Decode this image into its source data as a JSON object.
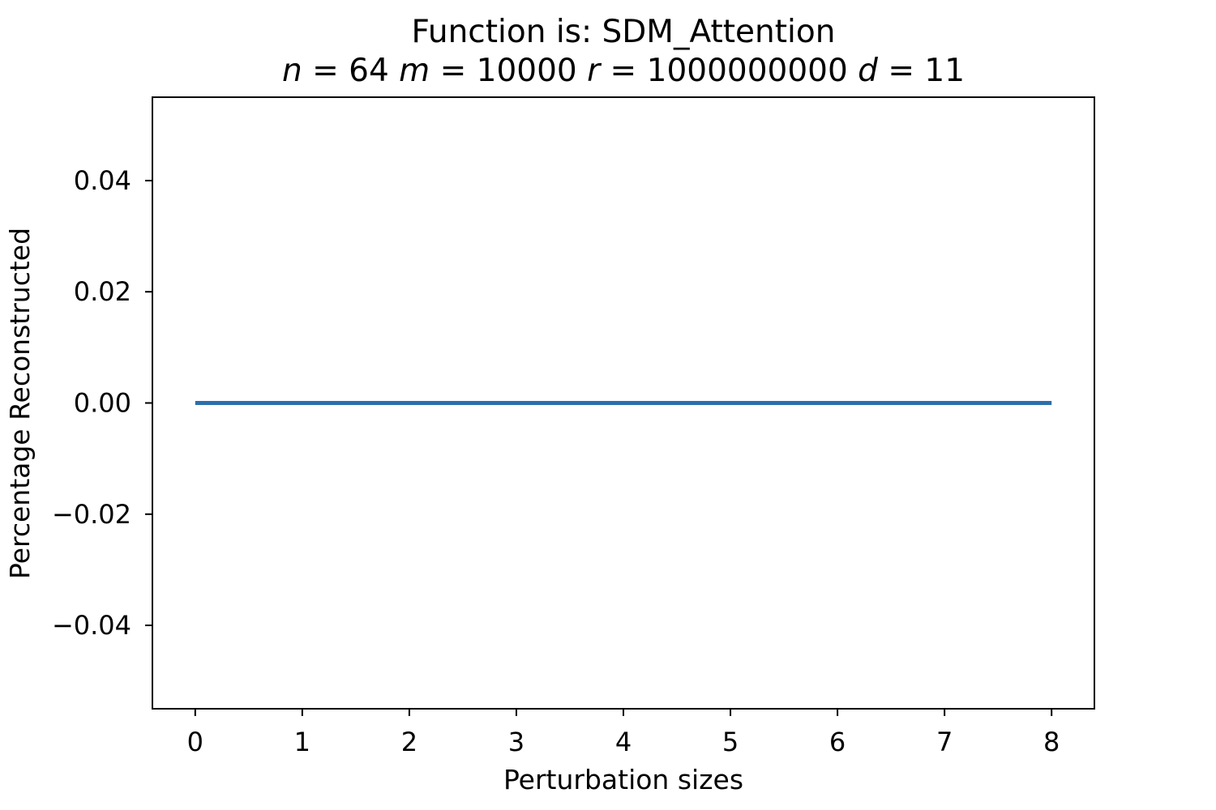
{
  "chart_data": {
    "type": "line",
    "title": "Function is: SDM_Attention",
    "subtitle": {
      "parts": [
        {
          "text": "n",
          "italic": true
        },
        {
          "text": " = 64 ",
          "italic": false
        },
        {
          "text": "m",
          "italic": true
        },
        {
          "text": " = 10000 ",
          "italic": false
        },
        {
          "text": "r",
          "italic": true
        },
        {
          "text": " = 1000000000 ",
          "italic": false
        },
        {
          "text": "d",
          "italic": true
        },
        {
          "text": " = 11",
          "italic": false
        }
      ]
    },
    "xlabel": "Perturbation sizes",
    "ylabel": "Percentage Reconstructed",
    "xlim": [
      -0.4,
      8.4
    ],
    "ylim": [
      -0.055,
      0.055
    ],
    "xticks": [
      0,
      1,
      2,
      3,
      4,
      5,
      6,
      7,
      8
    ],
    "xtick_labels": [
      "0",
      "1",
      "2",
      "3",
      "4",
      "5",
      "6",
      "7",
      "8"
    ],
    "yticks": [
      0.04,
      0.02,
      0.0,
      -0.02,
      -0.04
    ],
    "ytick_labels": [
      "0.04",
      "0.02",
      "0.00",
      "−0.02",
      "−0.04"
    ],
    "grid": false,
    "series": [
      {
        "color": "#2a6fad",
        "x": [
          0,
          1,
          2,
          3,
          4,
          5,
          6,
          7,
          8
        ],
        "y": [
          0,
          0,
          0,
          0,
          0,
          0,
          0,
          0,
          0
        ]
      }
    ]
  }
}
